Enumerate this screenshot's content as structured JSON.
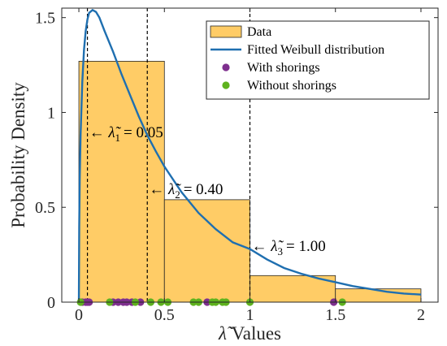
{
  "chart_data": {
    "type": "histogram-with-fit",
    "xlabel": "λ̃ Values",
    "ylabel": "Probability Density",
    "xlim": [
      -0.1,
      2.1
    ],
    "ylim": [
      0,
      1.55
    ],
    "xticks": [
      0,
      0.5,
      1,
      1.5,
      2
    ],
    "xtick_labels": [
      "0",
      "0.5",
      "1",
      "1.5",
      "2"
    ],
    "yticks": [
      0,
      0.5,
      1,
      1.5
    ],
    "ytick_labels": [
      "0",
      "0.5",
      "1",
      "1.5"
    ],
    "grid": false,
    "legend_position": "top-right",
    "histogram": {
      "name": "Data",
      "color": "#FFCC66",
      "edges": [
        0,
        0.5,
        1,
        1.5,
        2
      ],
      "values": [
        1.27,
        0.54,
        0.14,
        0.07
      ]
    },
    "fit": {
      "name": "Fitted Weibull distribution",
      "color": "#1F6FB0",
      "peak_x": 0.08,
      "peak_y": 1.54,
      "points": [
        [
          0,
          0
        ],
        [
          0.002,
          0.4
        ],
        [
          0.005,
          0.65
        ],
        [
          0.01,
          0.88
        ],
        [
          0.02,
          1.16
        ],
        [
          0.03,
          1.33
        ],
        [
          0.04,
          1.43
        ],
        [
          0.05,
          1.49
        ],
        [
          0.06,
          1.525
        ],
        [
          0.08,
          1.54
        ],
        [
          0.1,
          1.53
        ],
        [
          0.12,
          1.5
        ],
        [
          0.15,
          1.43
        ],
        [
          0.2,
          1.32
        ],
        [
          0.25,
          1.2
        ],
        [
          0.3,
          1.09
        ],
        [
          0.35,
          0.98
        ],
        [
          0.4,
          0.88
        ],
        [
          0.45,
          0.795
        ],
        [
          0.5,
          0.715
        ],
        [
          0.6,
          0.58
        ],
        [
          0.7,
          0.47
        ],
        [
          0.8,
          0.385
        ],
        [
          0.9,
          0.315
        ],
        [
          1.0,
          0.28
        ],
        [
          1.1,
          0.225
        ],
        [
          1.2,
          0.18
        ],
        [
          1.3,
          0.15
        ],
        [
          1.4,
          0.125
        ],
        [
          1.5,
          0.105
        ],
        [
          1.6,
          0.085
        ],
        [
          1.7,
          0.07
        ],
        [
          1.8,
          0.055
        ],
        [
          1.9,
          0.045
        ],
        [
          2.0,
          0.04
        ]
      ]
    },
    "series": [
      {
        "name": "With shorings",
        "color": "#7E2F8E",
        "x": [
          0.02,
          0.04,
          0.05,
          0.06,
          0.2,
          0.23,
          0.26,
          0.28,
          0.31,
          0.36,
          0.75,
          1.49
        ],
        "y": [
          0,
          0,
          0,
          0,
          0,
          0,
          0,
          0,
          0,
          0,
          0,
          0
        ]
      },
      {
        "name": "Without shorings",
        "color": "#5EB21E",
        "x": [
          0.01,
          0.18,
          0.33,
          0.42,
          0.48,
          0.52,
          0.67,
          0.7,
          0.78,
          0.8,
          0.84,
          0.86,
          1.0,
          1.54
        ],
        "y": [
          0,
          0,
          0,
          0,
          0,
          0,
          0,
          0,
          0,
          0,
          0,
          0,
          0,
          0
        ]
      }
    ],
    "thresholds": [
      {
        "x": 0.05,
        "label_symbol": "λ̃",
        "label_sub": "1",
        "label_value": "= 0.05",
        "label_y": 0.9
      },
      {
        "x": 0.4,
        "label_symbol": "λ̃",
        "label_sub": "2",
        "label_value": "= 0.40",
        "label_y": 0.6
      },
      {
        "x": 1.0,
        "label_symbol": "λ̃",
        "label_sub": "3",
        "label_value": "= 1.00",
        "label_y": 0.3
      }
    ],
    "arrow": "←"
  }
}
